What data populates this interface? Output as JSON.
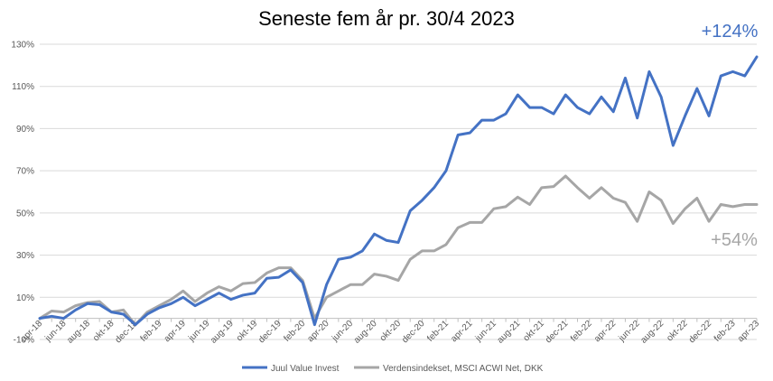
{
  "chart_data": {
    "type": "line",
    "title": "Seneste fem år pr. 30/4 2023",
    "ylim": [
      -10,
      130
    ],
    "yticks": [
      "-10%",
      "10%",
      "30%",
      "50%",
      "70%",
      "90%",
      "110%",
      "130%"
    ],
    "ytick_values": [
      -10,
      10,
      30,
      50,
      70,
      90,
      110,
      130
    ],
    "grid": true,
    "legend_position": "bottom",
    "x_tick_labels": [
      "apr-18",
      "jun-18",
      "aug-18",
      "okt-18",
      "dec-18",
      "feb-19",
      "apr-19",
      "jun-19",
      "aug-19",
      "okt-19",
      "dec-19",
      "feb-20",
      "apr-20",
      "jun-20",
      "aug-20",
      "okt-20",
      "dec-20",
      "feb-21",
      "apr-21",
      "jun-21",
      "aug-21",
      "okt-21",
      "dec-21",
      "feb-22",
      "apr-22",
      "jun-22",
      "aug-22",
      "okt-22",
      "dec-22",
      "feb-23",
      "apr-23"
    ],
    "x": [
      "apr-18",
      "maj-18",
      "jun-18",
      "jul-18",
      "aug-18",
      "sep-18",
      "okt-18",
      "nov-18",
      "dec-18",
      "jan-19",
      "feb-19",
      "mar-19",
      "apr-19",
      "maj-19",
      "jun-19",
      "jul-19",
      "aug-19",
      "sep-19",
      "okt-19",
      "nov-19",
      "dec-19",
      "jan-20",
      "feb-20",
      "mar-20",
      "apr-20",
      "maj-20",
      "jun-20",
      "jul-20",
      "aug-20",
      "sep-20",
      "okt-20",
      "nov-20",
      "dec-20",
      "jan-21",
      "feb-21",
      "mar-21",
      "apr-21",
      "maj-21",
      "jun-21",
      "jul-21",
      "aug-21",
      "sep-21",
      "okt-21",
      "nov-21",
      "dec-21",
      "jan-22",
      "feb-22",
      "mar-22",
      "apr-22",
      "maj-22",
      "jun-22",
      "jul-22",
      "aug-22",
      "sep-22",
      "okt-22",
      "nov-22",
      "dec-22",
      "jan-23",
      "feb-23",
      "mar-23",
      "apr-23"
    ],
    "series": [
      {
        "name": "Juul Value Invest",
        "color": "#4472C4",
        "values": [
          0,
          1,
          0,
          4,
          7,
          6.5,
          3,
          2,
          -3,
          2,
          5,
          7,
          10,
          6,
          9,
          12,
          9,
          11,
          12,
          19,
          19.5,
          23,
          17,
          -3,
          16,
          28,
          29,
          32,
          40,
          37,
          36,
          51,
          56,
          62,
          70,
          87,
          88,
          94,
          94,
          97,
          106,
          100,
          100,
          97,
          106,
          100,
          97,
          105,
          98,
          114,
          95,
          117,
          105,
          82,
          96,
          109,
          96,
          115,
          117,
          115,
          124
        ]
      },
      {
        "name": "Verdensindekset, MSCI ACWI Net, DKK",
        "color": "#A6A6A6",
        "values": [
          0,
          3.5,
          3,
          6,
          7.5,
          8,
          3,
          4,
          -3,
          3,
          6,
          9,
          13,
          8,
          12,
          15,
          13,
          16.5,
          17,
          21.5,
          24,
          24,
          18,
          0,
          10,
          13,
          16,
          16,
          21,
          20,
          18,
          28,
          32,
          32,
          35,
          43,
          45.5,
          45.5,
          52,
          53,
          57.5,
          54,
          62,
          62.5,
          67.5,
          62,
          57,
          62,
          57,
          55,
          46,
          60,
          56,
          45,
          52,
          57,
          46,
          54,
          53,
          54,
          54
        ]
      }
    ],
    "annotations": [
      {
        "text": "+124%",
        "color": "#4472C4"
      },
      {
        "text": "+54%",
        "color": "#A6A6A6"
      }
    ]
  }
}
